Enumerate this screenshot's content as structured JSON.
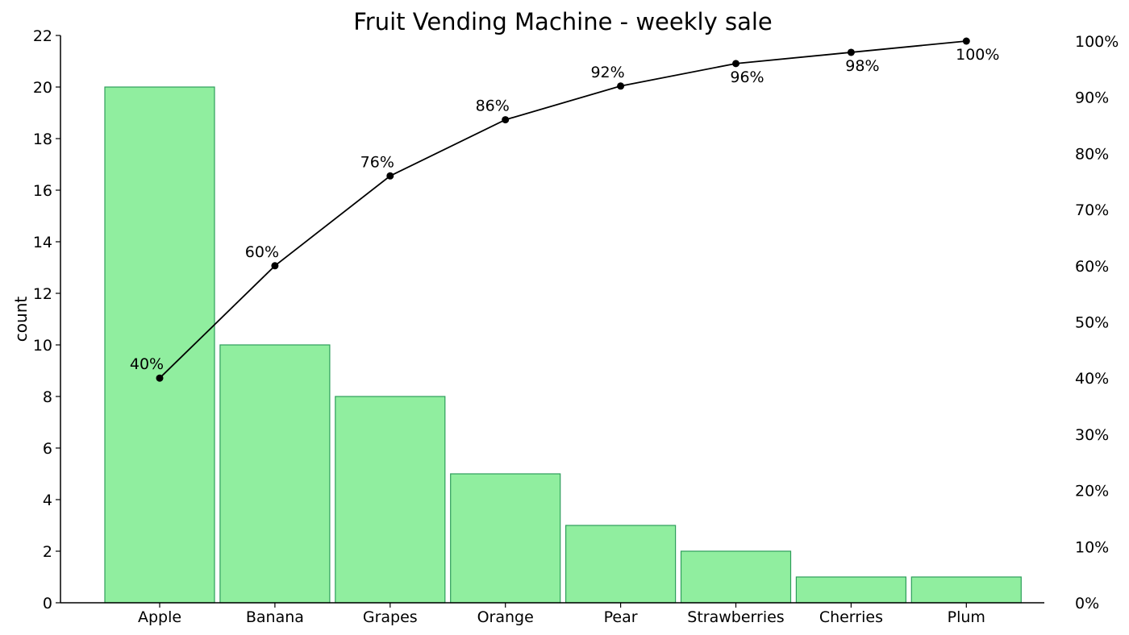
{
  "chart_data": {
    "type": "bar",
    "title": "Fruit Vending Machine - weekly sale",
    "xlabel": "",
    "ylabel": "count",
    "ylabel_right": "",
    "categories": [
      "Apple",
      "Banana",
      "Grapes",
      "Orange",
      "Pear",
      "Strawberries",
      "Cherries",
      "Plum"
    ],
    "series": [
      {
        "name": "count",
        "type": "bar",
        "axis": "left",
        "values": [
          20,
          10,
          8,
          5,
          3,
          2,
          1,
          1
        ]
      },
      {
        "name": "cumulative %",
        "type": "line",
        "axis": "right",
        "values": [
          40,
          60,
          76,
          86,
          92,
          96,
          98,
          100
        ],
        "labels": [
          "40%",
          "60%",
          "76%",
          "86%",
          "92%",
          "96%",
          "98%",
          "100%"
        ]
      }
    ],
    "ylim": [
      0,
      22
    ],
    "ylim_right": [
      0,
      101
    ],
    "yticks": [
      0,
      2,
      4,
      6,
      8,
      10,
      12,
      14,
      16,
      18,
      20,
      22
    ],
    "yticks_right": [
      "0%",
      "10%",
      "20%",
      "30%",
      "40%",
      "50%",
      "60%",
      "70%",
      "80%",
      "90%",
      "100%"
    ],
    "grid": false,
    "legend": null,
    "colors": {
      "bar_fill": "#90ee9f",
      "bar_edge": "#2e9e5b",
      "line": "#000000"
    }
  }
}
